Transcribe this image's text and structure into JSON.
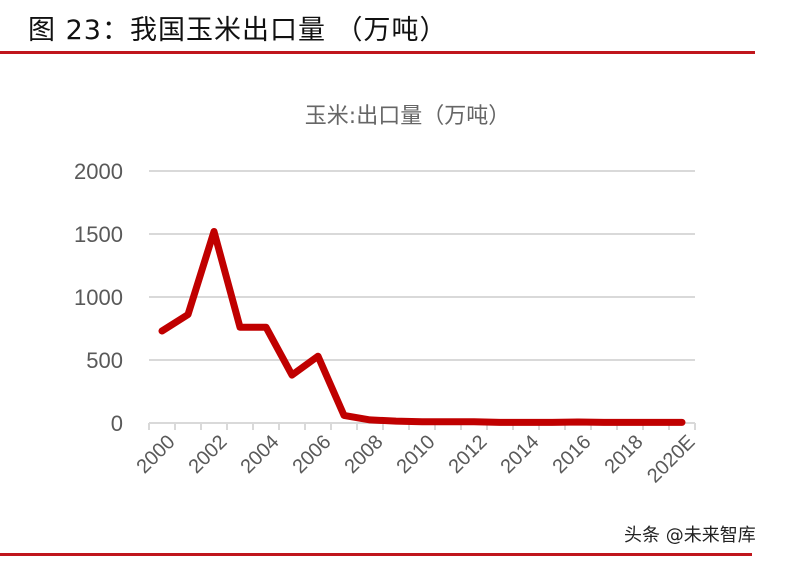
{
  "figure": {
    "title": "图 23：我国玉米出口量 （万吨）",
    "accent_color": "#C0161C"
  },
  "watermark": "头条 @未来智库",
  "chart_data": {
    "type": "line",
    "title": "玉米:出口量（万吨）",
    "xlabel": "",
    "ylabel": "",
    "ylim": [
      0,
      2000
    ],
    "yticks": [
      0,
      500,
      1000,
      1500,
      2000
    ],
    "grid": true,
    "legend": "none",
    "categories": [
      "2000",
      "2001",
      "2002",
      "2003",
      "2004",
      "2005",
      "2006",
      "2007",
      "2008",
      "2009",
      "2010",
      "2011",
      "2012",
      "2013",
      "2014",
      "2015",
      "2016",
      "2017",
      "2018",
      "2019",
      "2020E"
    ],
    "xtick_labels": [
      "2000",
      "2002",
      "2004",
      "2006",
      "2008",
      "2010",
      "2012",
      "2014",
      "2016",
      "2018",
      "2020E"
    ],
    "series": [
      {
        "name": "玉米:出口量",
        "color": "#C00000",
        "values": [
          730,
          860,
          1520,
          760,
          760,
          380,
          530,
          60,
          25,
          15,
          10,
          10,
          10,
          5,
          5,
          5,
          8,
          5,
          5,
          5,
          5
        ]
      }
    ]
  }
}
